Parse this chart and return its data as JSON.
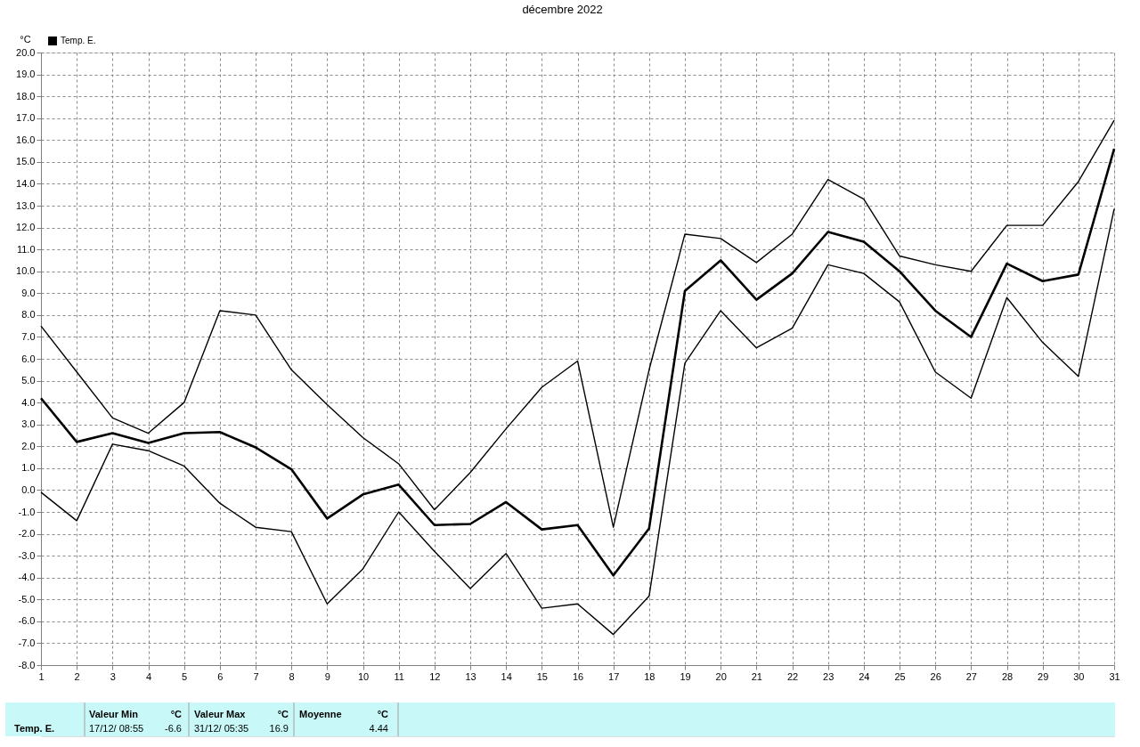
{
  "chart_data": {
    "type": "line",
    "title": "décembre 2022",
    "ylabel": "°C",
    "x": [
      1,
      2,
      3,
      4,
      5,
      6,
      7,
      8,
      9,
      10,
      11,
      12,
      13,
      14,
      15,
      16,
      17,
      18,
      19,
      20,
      21,
      22,
      23,
      24,
      25,
      26,
      27,
      28,
      29,
      30,
      31
    ],
    "xlim": [
      1,
      31
    ],
    "xticks": [
      1,
      2,
      3,
      4,
      5,
      6,
      7,
      8,
      9,
      10,
      11,
      12,
      13,
      14,
      15,
      16,
      17,
      18,
      19,
      20,
      21,
      22,
      23,
      24,
      25,
      26,
      27,
      28,
      29,
      30,
      31
    ],
    "ylim": [
      -8,
      20
    ],
    "yticks": [
      {
        "value": -8,
        "label": "-8.0"
      },
      {
        "value": -7,
        "label": "-7.0"
      },
      {
        "value": -6,
        "label": "-6.0"
      },
      {
        "value": -5,
        "label": "-5.0"
      },
      {
        "value": -4,
        "label": "-4.0"
      },
      {
        "value": -3,
        "label": "-3.0"
      },
      {
        "value": -2,
        "label": "-2.0"
      },
      {
        "value": -1,
        "label": "-1.0"
      },
      {
        "value": 0,
        "label": "0.0"
      },
      {
        "value": 1,
        "label": "1.0"
      },
      {
        "value": 2,
        "label": "2.0"
      },
      {
        "value": 3,
        "label": "3.0"
      },
      {
        "value": 4,
        "label": "4.0"
      },
      {
        "value": 5,
        "label": "5.0"
      },
      {
        "value": 6,
        "label": "6.0"
      },
      {
        "value": 7,
        "label": "7.0"
      },
      {
        "value": 8,
        "label": "8.0"
      },
      {
        "value": 9,
        "label": "9.0"
      },
      {
        "value": 10,
        "label": "10.0"
      },
      {
        "value": 11,
        "label": "11.0"
      },
      {
        "value": 12,
        "label": "12.0"
      },
      {
        "value": 13,
        "label": "13.0"
      },
      {
        "value": 14,
        "label": "14.0"
      },
      {
        "value": 15,
        "label": "15.0"
      },
      {
        "value": 16,
        "label": "16.0"
      },
      {
        "value": 17,
        "label": "17.0"
      },
      {
        "value": 18,
        "label": "18.0"
      },
      {
        "value": 19,
        "label": "19.0"
      },
      {
        "value": 20,
        "label": "20.0"
      }
    ],
    "series": [
      {
        "color": "#000000",
        "values": [
          7.5,
          5.4,
          3.3,
          2.6,
          4.0,
          8.2,
          8.0,
          5.5,
          3.9,
          2.4,
          1.2,
          -0.9,
          0.8,
          2.8,
          4.7,
          5.9,
          -1.7,
          5.5,
          11.7,
          11.5,
          10.4,
          11.7,
          14.2,
          13.3,
          10.7,
          10.3,
          10.0,
          12.1,
          12.1,
          14.1,
          16.9
        ]
      },
      {
        "name": "Temp. E.",
        "color": "#000000",
        "values": [
          4.2,
          2.2,
          2.6,
          2.15,
          2.6,
          2.65,
          1.95,
          0.95,
          -1.3,
          -0.2,
          0.25,
          -1.6,
          -1.55,
          -0.55,
          -1.8,
          -1.6,
          -3.9,
          -1.75,
          9.1,
          10.5,
          8.7,
          9.9,
          11.8,
          11.35,
          10.0,
          8.2,
          7.0,
          10.35,
          9.55,
          9.85,
          15.6
        ]
      },
      {
        "color": "#000000",
        "values": [
          -0.1,
          -1.4,
          2.1,
          1.8,
          1.1,
          -0.6,
          -1.7,
          -1.9,
          -5.2,
          -3.6,
          -1.0,
          -2.8,
          -4.5,
          -2.9,
          -5.4,
          -5.2,
          -6.6,
          -4.85,
          5.8,
          8.2,
          6.5,
          7.4,
          10.3,
          9.9,
          8.6,
          5.4,
          4.2,
          8.8,
          6.75,
          5.2,
          12.85
        ]
      }
    ],
    "grid": true,
    "legend": "top left",
    "marker": "none",
    "line_style": "solid",
    "annotations": [
      "Temp. E.",
      "Valeur Min",
      "°C",
      "17/12/  08:55",
      "-6.6",
      "Valeur Max",
      "°C",
      "31/12/  05:35",
      "16.9",
      "Moyenne",
      "°C",
      "4.44"
    ]
  }
}
